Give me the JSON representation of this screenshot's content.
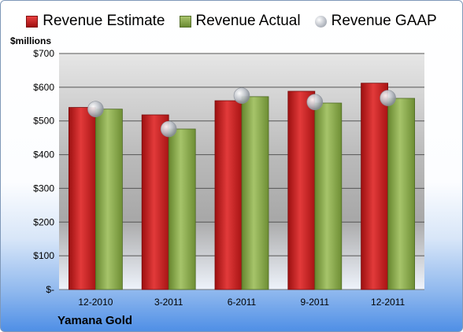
{
  "chart_data": {
    "type": "bar",
    "title": "",
    "ylabel": "$millions",
    "footer": "Yamana Gold",
    "categories": [
      "12-2010",
      "3-2011",
      "6-2011",
      "9-2011",
      "12-2011"
    ],
    "series": [
      {
        "name": "Revenue Estimate",
        "kind": "bar",
        "color": "#c81e1e",
        "values": [
          540,
          518,
          560,
          588,
          612
        ]
      },
      {
        "name": "Revenue Actual",
        "kind": "bar",
        "color": "#8aaa4a",
        "values": [
          535,
          476,
          572,
          553,
          567
        ]
      },
      {
        "name": "Revenue GAAP",
        "kind": "marker",
        "color": "#b0b5bd",
        "values": [
          535,
          476,
          575,
          556,
          568
        ]
      }
    ],
    "yticks": [
      {
        "value": 0,
        "label": "$-"
      },
      {
        "value": 100,
        "label": "$100"
      },
      {
        "value": 200,
        "label": "$200"
      },
      {
        "value": 300,
        "label": "$300"
      },
      {
        "value": 400,
        "label": "$400"
      },
      {
        "value": 500,
        "label": "$500"
      },
      {
        "value": 600,
        "label": "$600"
      },
      {
        "value": 700,
        "label": "$700"
      }
    ],
    "ylim": [
      0,
      700
    ],
    "grid": true,
    "legend": "top"
  }
}
